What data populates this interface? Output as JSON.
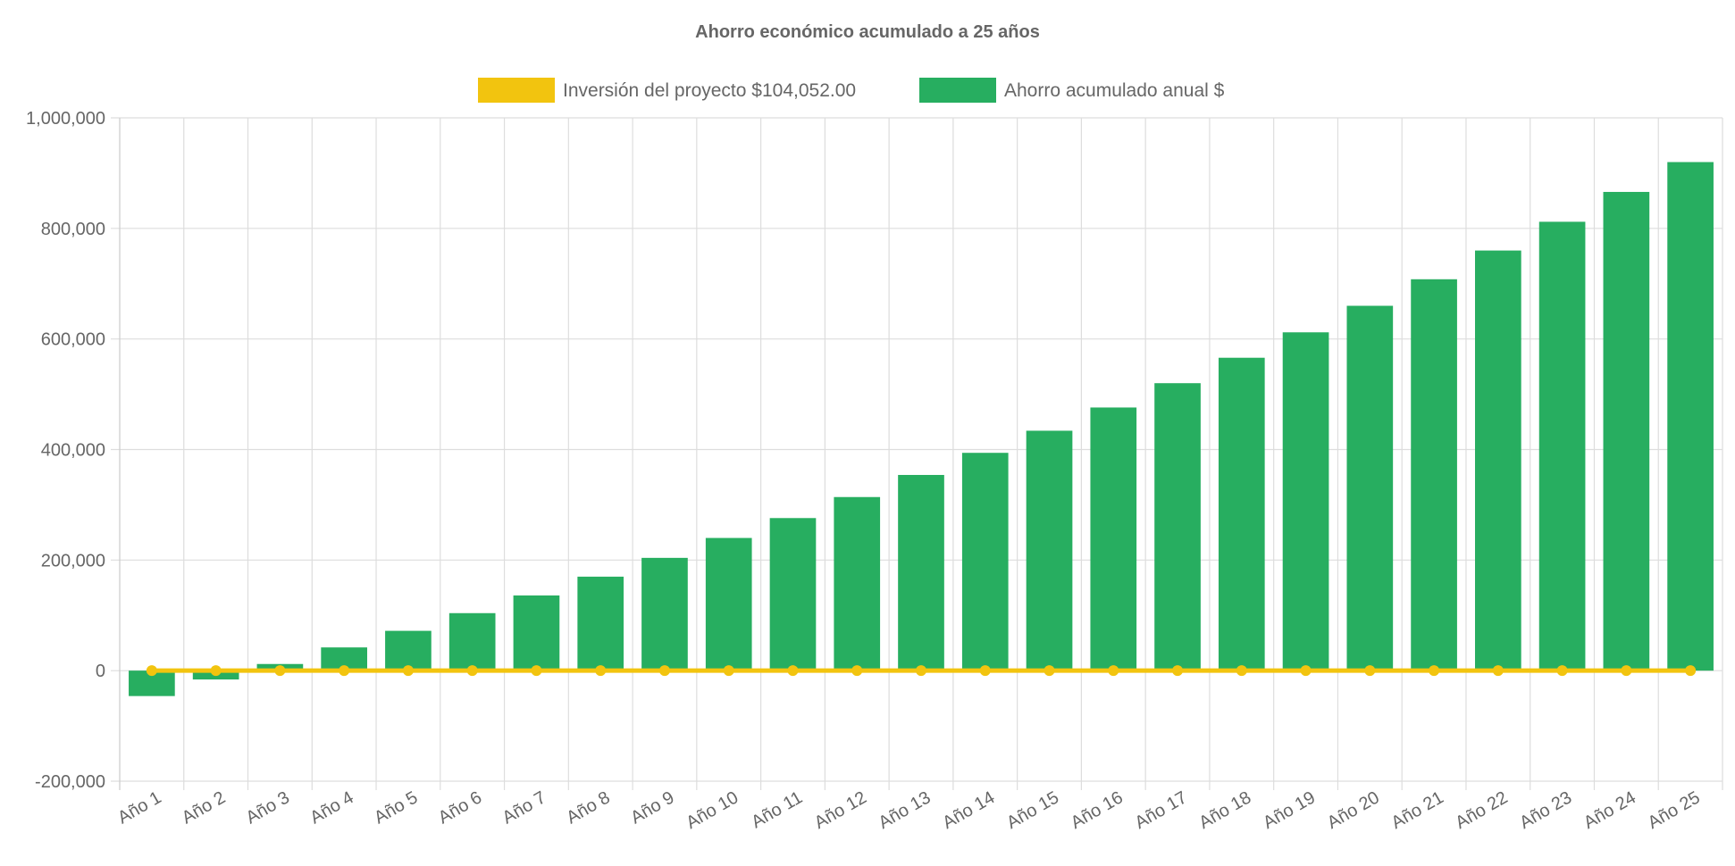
{
  "chart_data": {
    "type": "bar",
    "title": "Ahorro económico acumulado a 25 años",
    "categories": [
      "Año 1",
      "Año 2",
      "Año 3",
      "Año 4",
      "Año 5",
      "Año 6",
      "Año 7",
      "Año 8",
      "Año 9",
      "Año 10",
      "Año 11",
      "Año 12",
      "Año 13",
      "Año 14",
      "Año 15",
      "Año 16",
      "Año 17",
      "Año 18",
      "Año 19",
      "Año 20",
      "Año 21",
      "Año 22",
      "Año 23",
      "Año 24",
      "Año 25"
    ],
    "series": [
      {
        "name": "Inversión del proyecto $104,052.00",
        "type": "line",
        "color": "#f2c40f",
        "values": [
          0,
          0,
          0,
          0,
          0,
          0,
          0,
          0,
          0,
          0,
          0,
          0,
          0,
          0,
          0,
          0,
          0,
          0,
          0,
          0,
          0,
          0,
          0,
          0,
          0
        ]
      },
      {
        "name": "Ahorro acumulado anual $",
        "type": "bar",
        "color": "#27ae60",
        "values": [
          -46000,
          -16000,
          12000,
          42000,
          72000,
          104000,
          136000,
          170000,
          204000,
          240000,
          276000,
          314000,
          354000,
          394000,
          434000,
          476000,
          520000,
          566000,
          612000,
          660000,
          708000,
          760000,
          812000,
          866000,
          920000
        ]
      }
    ],
    "ylim": [
      -200000,
      1000000
    ],
    "yticks": [
      "1,000,000",
      "800,000",
      "600,000",
      "400,000",
      "200,000",
      "0",
      "-200,000"
    ],
    "grid": true,
    "legend": "top"
  }
}
